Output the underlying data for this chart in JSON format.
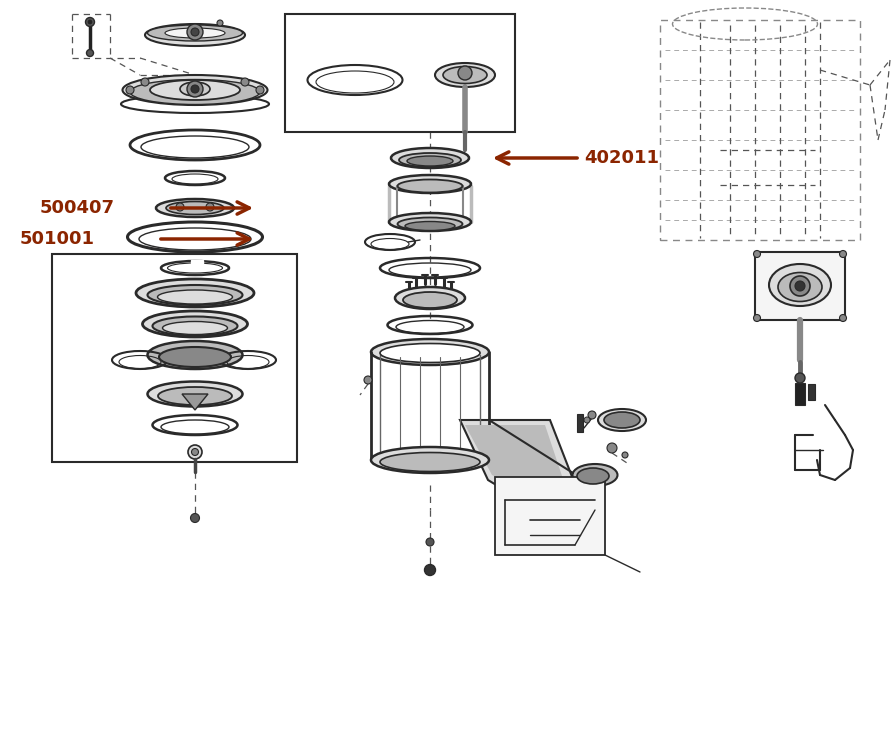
{
  "bg_color": "#ffffff",
  "lc": "#2a2a2a",
  "lc_light": "#666666",
  "lc_gray": "#999999",
  "fc_dark": "#888888",
  "fc_mid": "#bbbbbb",
  "fc_light": "#dddddd",
  "fc_white": "#f5f5f5",
  "ac": "#8B2500",
  "tc": "#8B2500",
  "label_500407": "500407",
  "label_501001": "501001",
  "label_402011": "402011",
  "figsize": [
    8.94,
    7.3
  ],
  "dpi": 100
}
